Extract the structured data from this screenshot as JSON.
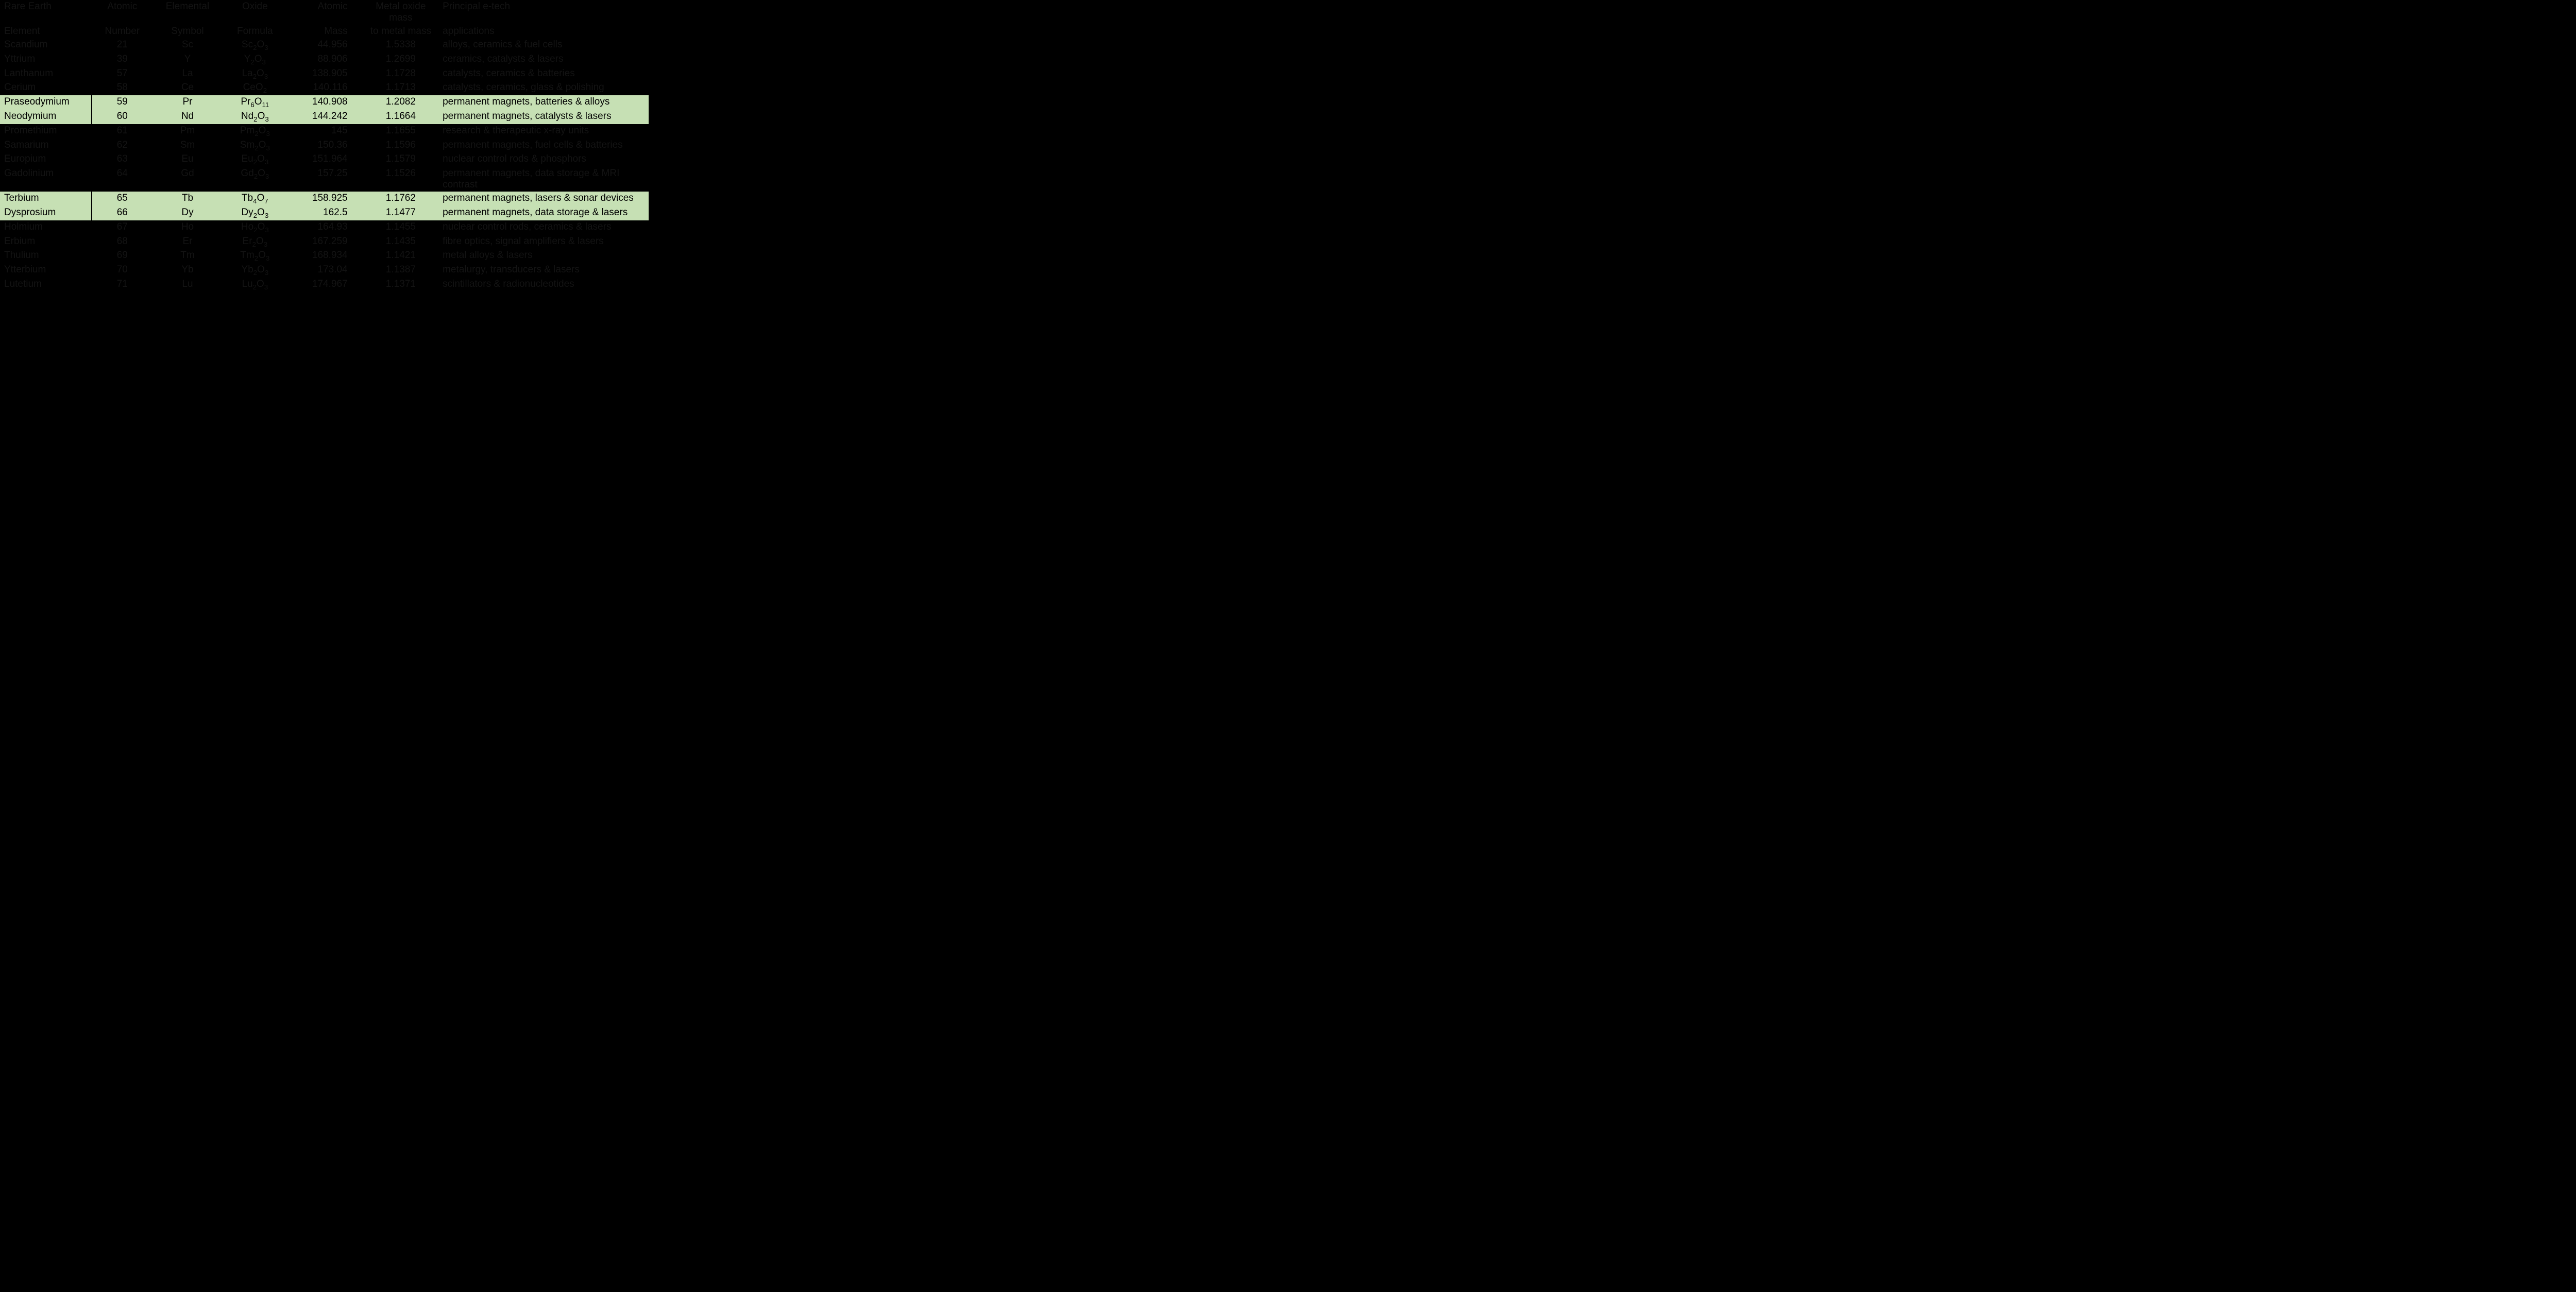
{
  "table": {
    "headers": {
      "row1": [
        "Rare Earth",
        "Atomic",
        "Elemental",
        "Oxide",
        "Atomic",
        "Metal oxide mass",
        "Principal e-tech"
      ],
      "row2": [
        "Element",
        "Number",
        "Symbol",
        "Formula",
        "Mass",
        "to metal mass",
        "applications"
      ]
    },
    "rows": [
      {
        "hl": false,
        "name": "Scandium",
        "num": "21",
        "sym": "Sc",
        "oxide_html": "Sc<sub>2</sub>O<sub>3</sub>",
        "mass": "44.956",
        "factor": "1.5338",
        "uses": "alloys, ceramics & fuel cells"
      },
      {
        "hl": false,
        "name": "Yttrium",
        "num": "39",
        "sym": "Y",
        "oxide_html": "Y<sub>2</sub>O<sub>3</sub>",
        "mass": "88.906",
        "factor": "1.2699",
        "uses": "ceramics, catalysts & lasers"
      },
      {
        "hl": false,
        "name": "Lanthanum",
        "num": "57",
        "sym": "La",
        "oxide_html": "La<sub>2</sub>O<sub>3</sub>",
        "mass": "138.905",
        "factor": "1.1728",
        "uses": "catalysts, ceramics & batteries"
      },
      {
        "hl": false,
        "name": "Cerium",
        "num": "58",
        "sym": "Ce",
        "oxide_html": "CeO<sub>2</sub>",
        "mass": "140.116",
        "factor": "1.1713",
        "uses": "catalysts, ceramics, glass & polishing"
      },
      {
        "hl": true,
        "name": "Praseodymium",
        "num": "59",
        "sym": "Pr",
        "oxide_html": "Pr<sub>6</sub>O<sub>11</sub>",
        "mass": "140.908",
        "factor": "1.2082",
        "uses": "permanent magnets, batteries & alloys"
      },
      {
        "hl": true,
        "name": "Neodymium",
        "num": "60",
        "sym": "Nd",
        "oxide_html": "Nd<sub>2</sub>O<sub>3</sub>",
        "mass": "144.242",
        "factor": "1.1664",
        "uses": "permanent magnets, catalysts & lasers"
      },
      {
        "hl": false,
        "name": "Promethium",
        "num": "61",
        "sym": "Pm",
        "oxide_html": "Pm<sub>2</sub>O<sub>3</sub>",
        "mass": "145",
        "factor": "1.1655",
        "uses": "research & therapeutic x-ray units"
      },
      {
        "hl": false,
        "name": "Samarium",
        "num": "62",
        "sym": "Sm",
        "oxide_html": "Sm<sub>2</sub>O<sub>3</sub>",
        "mass": "150.36",
        "factor": "1.1596",
        "uses": "permanent magnets, fuel cells & batteries"
      },
      {
        "hl": false,
        "name": "Europium",
        "num": "63",
        "sym": "Eu",
        "oxide_html": "Eu<sub>2</sub>O<sub>3</sub>",
        "mass": "151.964",
        "factor": "1.1579",
        "uses": "nuclear control rods & phosphors"
      },
      {
        "hl": false,
        "name": "Gadolinium",
        "num": "64",
        "sym": "Gd",
        "oxide_html": "Gd<sub>2</sub>O<sub>3</sub>",
        "mass": "157.25",
        "factor": "1.1526",
        "uses": "permanent magnets, data storage & MRI contrast"
      },
      {
        "hl": true,
        "name": "Terbium",
        "num": "65",
        "sym": "Tb",
        "oxide_html": "Tb<sub>4</sub>O<sub>7</sub>",
        "mass": "158.925",
        "factor": "1.1762",
        "uses": "permanent magnets, lasers & sonar devices"
      },
      {
        "hl": true,
        "name": "Dysprosium",
        "num": "66",
        "sym": "Dy",
        "oxide_html": "Dy<sub>2</sub>O<sub>3</sub>",
        "mass": "162.5",
        "factor": "1.1477",
        "uses": "permanent magnets, data storage & lasers"
      },
      {
        "hl": false,
        "name": "Holmium",
        "num": "67",
        "sym": "Ho",
        "oxide_html": "Ho<sub>2</sub>O<sub>3</sub>",
        "mass": "164.93",
        "factor": "1.1455",
        "uses": "nuclear control rods, ceramics & lasers"
      },
      {
        "hl": false,
        "name": "Erbium",
        "num": "68",
        "sym": "Er",
        "oxide_html": "Er<sub>2</sub>O<sub>3</sub>",
        "mass": "167.259",
        "factor": "1.1435",
        "uses": "fibre optics, signal amplifiers & lasers"
      },
      {
        "hl": false,
        "name": "Thulium",
        "num": "69",
        "sym": "Tm",
        "oxide_html": "Tm<sub>2</sub>O<sub>3</sub>",
        "mass": "168.934",
        "factor": "1.1421",
        "uses": "metal alloys & lasers"
      },
      {
        "hl": false,
        "name": "Ytterbium",
        "num": "70",
        "sym": "Yb",
        "oxide_html": "Yb<sub>2</sub>O<sub>3</sub>",
        "mass": "173.04",
        "factor": "1.1387",
        "uses": "metalurgy, transducers & lasers"
      },
      {
        "hl": false,
        "name": "Lutetium",
        "num": "71",
        "sym": "Lu",
        "oxide_html": "Lu<sub>2</sub>O<sub>3</sub>",
        "mass": "174.967",
        "factor": "1.1371",
        "uses": "scintillators & radionucleotides"
      }
    ]
  }
}
